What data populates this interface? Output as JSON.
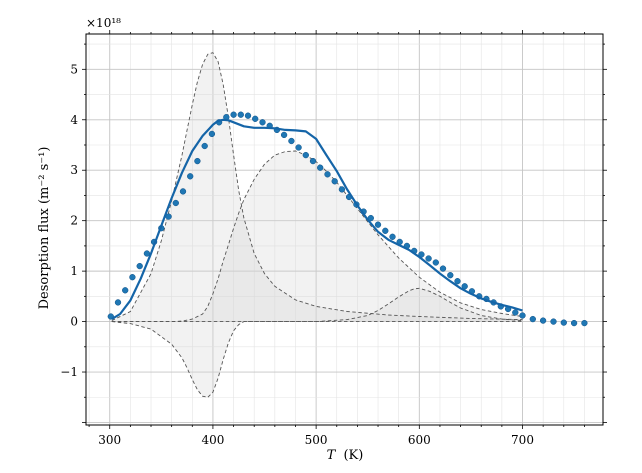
{
  "chart_data": {
    "type": "line",
    "xlabel_var": "T",
    "xlabel_unit": "(K)",
    "ylabel": "Desorption flux (m⁻² s⁻¹)",
    "y_multiplier": "×10¹⁸",
    "xlim": [
      277,
      778
    ],
    "ylim": [
      -2.05,
      5.7
    ],
    "x_major_ticks": [
      300,
      400,
      500,
      600,
      700
    ],
    "y_major_ticks": [
      -1,
      0,
      1,
      2,
      3,
      4,
      5
    ],
    "x_tick_labels": [
      "300",
      "400",
      "500",
      "600",
      "700"
    ],
    "y_tick_labels": [
      "−1",
      "0",
      "1",
      "2",
      "3",
      "4",
      "5"
    ],
    "grid": true,
    "legend": "none",
    "colors": {
      "model": "#1565a8",
      "points": "#1f77b4",
      "component_line": "#555555",
      "fill": "#d6d6d6"
    },
    "series": [
      {
        "kind": "points",
        "x": [
          301,
          308,
          315,
          322,
          329,
          336,
          343,
          350,
          357,
          364,
          371,
          378,
          385,
          392,
          399,
          406,
          413,
          420,
          427,
          434,
          441,
          448,
          455,
          462,
          469,
          476,
          483,
          490,
          497,
          504,
          511,
          518,
          525,
          532,
          539,
          546,
          553,
          560,
          567,
          574,
          581,
          588,
          595,
          602,
          609,
          616,
          623,
          630,
          637,
          644,
          651,
          658,
          665,
          672,
          679,
          686,
          693,
          700,
          710,
          720,
          730,
          740,
          750,
          760
        ],
        "y": [
          0.1,
          0.38,
          0.62,
          0.88,
          1.1,
          1.35,
          1.58,
          1.85,
          2.08,
          2.35,
          2.58,
          2.88,
          3.18,
          3.48,
          3.72,
          3.95,
          4.05,
          4.1,
          4.1,
          4.08,
          4.02,
          3.95,
          3.88,
          3.8,
          3.7,
          3.58,
          3.45,
          3.3,
          3.18,
          3.05,
          2.92,
          2.78,
          2.62,
          2.47,
          2.32,
          2.18,
          2.05,
          1.92,
          1.8,
          1.68,
          1.58,
          1.5,
          1.4,
          1.33,
          1.25,
          1.17,
          1.05,
          0.92,
          0.8,
          0.7,
          0.6,
          0.5,
          0.45,
          0.38,
          0.3,
          0.25,
          0.18,
          0.12,
          0.05,
          0.02,
          0.0,
          -0.02,
          -0.03,
          -0.03
        ]
      },
      {
        "kind": "model",
        "x": [
          302,
          310,
          320,
          330,
          340,
          350,
          360,
          370,
          380,
          390,
          400,
          405,
          410,
          415,
          420,
          430,
          440,
          450,
          460,
          470,
          480,
          490,
          500,
          510,
          520,
          530,
          540,
          550,
          560,
          570,
          580,
          590,
          600,
          610,
          620,
          630,
          640,
          650,
          660,
          670,
          680,
          690,
          700
        ],
        "y": [
          0.05,
          0.15,
          0.42,
          0.85,
          1.35,
          1.9,
          2.45,
          2.95,
          3.38,
          3.68,
          3.9,
          3.98,
          4.0,
          3.99,
          3.95,
          3.87,
          3.84,
          3.84,
          3.83,
          3.8,
          3.79,
          3.77,
          3.62,
          3.3,
          2.98,
          2.62,
          2.3,
          2.02,
          1.78,
          1.62,
          1.52,
          1.42,
          1.28,
          1.12,
          0.95,
          0.8,
          0.66,
          0.55,
          0.46,
          0.39,
          0.33,
          0.28,
          0.22
        ]
      },
      {
        "kind": "component",
        "x": [
          302,
          320,
          340,
          350,
          360,
          370,
          375,
          380,
          385,
          390,
          395,
          400,
          405,
          410,
          415,
          420,
          425,
          430,
          440,
          450,
          460,
          480,
          500,
          530,
          570,
          600,
          650,
          700
        ],
        "y": [
          0.02,
          0.2,
          0.95,
          1.6,
          2.4,
          3.3,
          3.8,
          4.3,
          4.75,
          5.1,
          5.3,
          5.33,
          5.15,
          4.7,
          4.05,
          3.3,
          2.6,
          2.05,
          1.35,
          0.95,
          0.7,
          0.43,
          0.3,
          0.2,
          0.13,
          0.1,
          0.06,
          0.04
        ]
      },
      {
        "kind": "component",
        "x": [
          302,
          330,
          360,
          370,
          380,
          390,
          395,
          400,
          405,
          410,
          415,
          420,
          425,
          430,
          440,
          450,
          460,
          470,
          480,
          490,
          500,
          510,
          520,
          530,
          540,
          550,
          560,
          580,
          600,
          620,
          640,
          660,
          680,
          700
        ],
        "y": [
          0.0,
          0.0,
          0.0,
          0.01,
          0.05,
          0.15,
          0.3,
          0.55,
          0.85,
          1.2,
          1.52,
          1.85,
          2.15,
          2.42,
          2.82,
          3.12,
          3.3,
          3.37,
          3.38,
          3.3,
          3.17,
          2.98,
          2.76,
          2.5,
          2.24,
          1.98,
          1.72,
          1.26,
          0.88,
          0.58,
          0.37,
          0.24,
          0.16,
          0.1
        ]
      },
      {
        "kind": "component",
        "x": [
          302,
          500,
          530,
          550,
          560,
          570,
          580,
          590,
          595,
          600,
          610,
          620,
          630,
          640,
          660,
          680,
          700
        ],
        "y": [
          0.0,
          0.0,
          0.04,
          0.12,
          0.22,
          0.35,
          0.49,
          0.61,
          0.65,
          0.66,
          0.6,
          0.5,
          0.38,
          0.27,
          0.12,
          0.05,
          0.02
        ]
      },
      {
        "kind": "component",
        "x": [
          302,
          320,
          340,
          360,
          370,
          375,
          380,
          385,
          390,
          395,
          400,
          405,
          410,
          415,
          420,
          425,
          430,
          440,
          460,
          480,
          500,
          550,
          600,
          650,
          700
        ],
        "y": [
          0.0,
          -0.04,
          -0.15,
          -0.45,
          -0.72,
          -0.92,
          -1.15,
          -1.35,
          -1.48,
          -1.5,
          -1.4,
          -1.12,
          -0.75,
          -0.42,
          -0.18,
          -0.06,
          0.0,
          0.0,
          0.0,
          0.0,
          0.0,
          0.0,
          0.0,
          0.0,
          0.0
        ]
      }
    ]
  }
}
